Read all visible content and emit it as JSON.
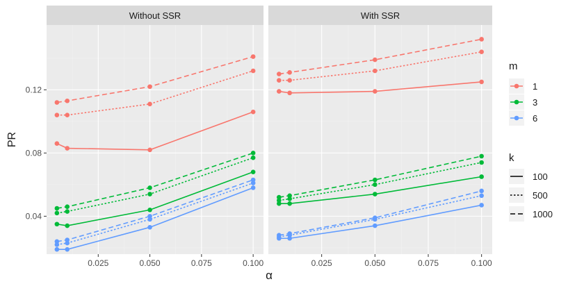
{
  "chart_data": {
    "type": "line",
    "xlabel": "α",
    "ylabel": "PR",
    "xlim": [
      0.0,
      0.105
    ],
    "ylim": [
      0.016,
      0.161
    ],
    "x_ticks": [
      {
        "value": 0.025,
        "label": "0.025"
      },
      {
        "value": 0.05,
        "label": "0.050"
      },
      {
        "value": 0.075,
        "label": "0.075"
      },
      {
        "value": 0.1,
        "label": "0.100"
      }
    ],
    "y_ticks": [
      {
        "value": 0.04,
        "label": "0.04"
      },
      {
        "value": 0.08,
        "label": "0.08"
      },
      {
        "value": 0.12,
        "label": "0.12"
      }
    ],
    "x": [
      0.005,
      0.01,
      0.05,
      0.1
    ],
    "panels": [
      {
        "title": "Without SSR",
        "series": [
          {
            "m": "1",
            "k": "100",
            "values": [
              0.086,
              0.083,
              0.082,
              0.106
            ]
          },
          {
            "m": "1",
            "k": "500",
            "values": [
              0.104,
              0.104,
              0.111,
              0.132
            ]
          },
          {
            "m": "1",
            "k": "1000",
            "values": [
              0.112,
              0.113,
              0.122,
              0.141
            ]
          },
          {
            "m": "3",
            "k": "100",
            "values": [
              0.035,
              0.034,
              0.044,
              0.068
            ]
          },
          {
            "m": "3",
            "k": "500",
            "values": [
              0.042,
              0.043,
              0.054,
              0.077
            ]
          },
          {
            "m": "3",
            "k": "1000",
            "values": [
              0.045,
              0.046,
              0.058,
              0.08
            ]
          },
          {
            "m": "6",
            "k": "100",
            "values": [
              0.019,
              0.019,
              0.033,
              0.058
            ]
          },
          {
            "m": "6",
            "k": "500",
            "values": [
              0.022,
              0.023,
              0.038,
              0.061
            ]
          },
          {
            "m": "6",
            "k": "1000",
            "values": [
              0.024,
              0.025,
              0.04,
              0.063
            ]
          }
        ]
      },
      {
        "title": "With SSR",
        "series": [
          {
            "m": "1",
            "k": "100",
            "values": [
              0.119,
              0.118,
              0.119,
              0.125
            ]
          },
          {
            "m": "1",
            "k": "500",
            "values": [
              0.126,
              0.126,
              0.132,
              0.144
            ]
          },
          {
            "m": "1",
            "k": "1000",
            "values": [
              0.13,
              0.131,
              0.139,
              0.152
            ]
          },
          {
            "m": "3",
            "k": "100",
            "values": [
              0.048,
              0.048,
              0.054,
              0.065
            ]
          },
          {
            "m": "3",
            "k": "500",
            "values": [
              0.05,
              0.051,
              0.06,
              0.074
            ]
          },
          {
            "m": "3",
            "k": "1000",
            "values": [
              0.052,
              0.053,
              0.063,
              0.078
            ]
          },
          {
            "m": "6",
            "k": "100",
            "values": [
              0.026,
              0.026,
              0.034,
              0.047
            ]
          },
          {
            "m": "6",
            "k": "500",
            "values": [
              0.027,
              0.028,
              0.038,
              0.053
            ]
          },
          {
            "m": "6",
            "k": "1000",
            "values": [
              0.028,
              0.029,
              0.039,
              0.056
            ]
          }
        ]
      }
    ],
    "legend_m": {
      "title": "m",
      "position": "right",
      "items": [
        {
          "label": "1",
          "color": "#F8766D"
        },
        {
          "label": "3",
          "color": "#00BA38"
        },
        {
          "label": "6",
          "color": "#619CFF"
        }
      ]
    },
    "legend_k": {
      "title": "k",
      "position": "right",
      "items": [
        {
          "label": "100",
          "linetype": "solid"
        },
        {
          "label": "500",
          "linetype": "dotted"
        },
        {
          "label": "1000",
          "linetype": "dashed"
        }
      ]
    },
    "colors": {
      "panel_bg": "#EBEBEB",
      "strip_bg": "#D9D9D9",
      "grid_major": "#FFFFFF",
      "grid_minor": "#F2F2F2",
      "text": "#1A1A1A",
      "tick_text": "#4D4D4D"
    }
  }
}
